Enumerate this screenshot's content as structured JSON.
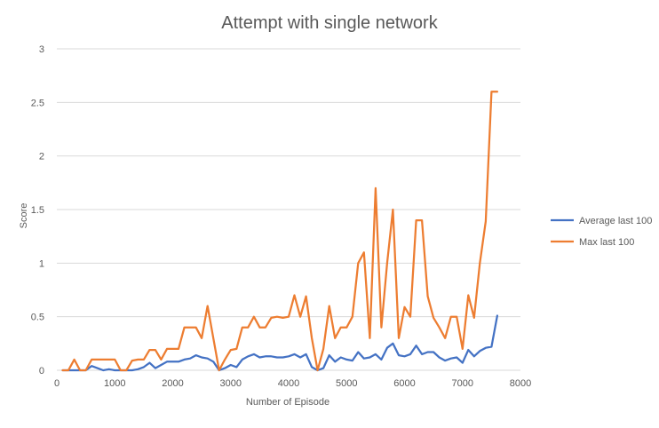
{
  "chart_data": {
    "type": "line",
    "title": "Attempt with single network",
    "xlabel": "Number  of Episode",
    "ylabel": "Score",
    "xlim": [
      0,
      8000
    ],
    "ylim": [
      0,
      3
    ],
    "x_ticks": [
      0,
      1000,
      2000,
      3000,
      4000,
      5000,
      6000,
      7000,
      8000
    ],
    "y_ticks": [
      0,
      0.5,
      1,
      1.5,
      2,
      2.5,
      3
    ],
    "x_tick_labels": [
      "0",
      "1000",
      "2000",
      "3000",
      "4000",
      "5000",
      "6000",
      "7000",
      "8000"
    ],
    "y_tick_labels": [
      "0",
      "0.5",
      "1",
      "1.5",
      "2",
      "2.5",
      "3"
    ],
    "grid": "horizontal",
    "legend_position": "right",
    "series": [
      {
        "name": "Average last 100",
        "color": "#4472c4",
        "points": [
          [
            100,
            0
          ],
          [
            200,
            0
          ],
          [
            300,
            0
          ],
          [
            400,
            0
          ],
          [
            500,
            0
          ],
          [
            600,
            0.04
          ],
          [
            700,
            0.02
          ],
          [
            800,
            0
          ],
          [
            900,
            0.01
          ],
          [
            1000,
            0
          ],
          [
            1100,
            0
          ],
          [
            1200,
            0
          ],
          [
            1300,
            0
          ],
          [
            1400,
            0.01
          ],
          [
            1500,
            0.03
          ],
          [
            1600,
            0.07
          ],
          [
            1700,
            0.02
          ],
          [
            1800,
            0.05
          ],
          [
            1900,
            0.08
          ],
          [
            2000,
            0.08
          ],
          [
            2100,
            0.08
          ],
          [
            2200,
            0.1
          ],
          [
            2300,
            0.11
          ],
          [
            2400,
            0.14
          ],
          [
            2500,
            0.12
          ],
          [
            2600,
            0.11
          ],
          [
            2700,
            0.08
          ],
          [
            2800,
            0
          ],
          [
            2900,
            0.02
          ],
          [
            3000,
            0.05
          ],
          [
            3100,
            0.03
          ],
          [
            3200,
            0.1
          ],
          [
            3300,
            0.13
          ],
          [
            3400,
            0.15
          ],
          [
            3500,
            0.12
          ],
          [
            3600,
            0.13
          ],
          [
            3700,
            0.13
          ],
          [
            3800,
            0.12
          ],
          [
            3900,
            0.12
          ],
          [
            4000,
            0.13
          ],
          [
            4100,
            0.15
          ],
          [
            4200,
            0.12
          ],
          [
            4300,
            0.15
          ],
          [
            4400,
            0.03
          ],
          [
            4500,
            0
          ],
          [
            4600,
            0.02
          ],
          [
            4700,
            0.14
          ],
          [
            4800,
            0.08
          ],
          [
            4900,
            0.12
          ],
          [
            5000,
            0.1
          ],
          [
            5100,
            0.09
          ],
          [
            5200,
            0.17
          ],
          [
            5300,
            0.11
          ],
          [
            5400,
            0.12
          ],
          [
            5500,
            0.15
          ],
          [
            5600,
            0.1
          ],
          [
            5700,
            0.21
          ],
          [
            5800,
            0.25
          ],
          [
            5900,
            0.14
          ],
          [
            6000,
            0.13
          ],
          [
            6100,
            0.15
          ],
          [
            6200,
            0.23
          ],
          [
            6300,
            0.15
          ],
          [
            6400,
            0.17
          ],
          [
            6500,
            0.17
          ],
          [
            6600,
            0.12
          ],
          [
            6700,
            0.09
          ],
          [
            6800,
            0.11
          ],
          [
            6900,
            0.12
          ],
          [
            7000,
            0.07
          ],
          [
            7100,
            0.19
          ],
          [
            7200,
            0.13
          ],
          [
            7300,
            0.18
          ],
          [
            7400,
            0.21
          ],
          [
            7500,
            0.22
          ],
          [
            7600,
            0.51
          ]
        ]
      },
      {
        "name": "Max last 100",
        "color": "#ed7d31",
        "points": [
          [
            100,
            0
          ],
          [
            200,
            0
          ],
          [
            300,
            0.1
          ],
          [
            400,
            0
          ],
          [
            500,
            0
          ],
          [
            600,
            0.1
          ],
          [
            700,
            0.1
          ],
          [
            800,
            0.1
          ],
          [
            900,
            0.1
          ],
          [
            1000,
            0.1
          ],
          [
            1100,
            0
          ],
          [
            1200,
            0
          ],
          [
            1300,
            0.09
          ],
          [
            1400,
            0.1
          ],
          [
            1500,
            0.1
          ],
          [
            1600,
            0.19
          ],
          [
            1700,
            0.19
          ],
          [
            1800,
            0.1
          ],
          [
            1900,
            0.2
          ],
          [
            2000,
            0.2
          ],
          [
            2100,
            0.2
          ],
          [
            2200,
            0.4
          ],
          [
            2300,
            0.4
          ],
          [
            2400,
            0.4
          ],
          [
            2500,
            0.3
          ],
          [
            2600,
            0.6
          ],
          [
            2700,
            0.3
          ],
          [
            2800,
            0
          ],
          [
            2900,
            0.1
          ],
          [
            3000,
            0.19
          ],
          [
            3100,
            0.2
          ],
          [
            3200,
            0.4
          ],
          [
            3300,
            0.4
          ],
          [
            3400,
            0.5
          ],
          [
            3500,
            0.4
          ],
          [
            3600,
            0.4
          ],
          [
            3700,
            0.49
          ],
          [
            3800,
            0.5
          ],
          [
            3900,
            0.49
          ],
          [
            4000,
            0.5
          ],
          [
            4100,
            0.7
          ],
          [
            4200,
            0.5
          ],
          [
            4300,
            0.69
          ],
          [
            4400,
            0.3
          ],
          [
            4500,
            0
          ],
          [
            4600,
            0.2
          ],
          [
            4700,
            0.6
          ],
          [
            4800,
            0.3
          ],
          [
            4900,
            0.4
          ],
          [
            5000,
            0.4
          ],
          [
            5100,
            0.5
          ],
          [
            5200,
            1
          ],
          [
            5300,
            1.1
          ],
          [
            5400,
            0.3
          ],
          [
            5500,
            1.7
          ],
          [
            5600,
            0.4
          ],
          [
            5700,
            1
          ],
          [
            5800,
            1.5
          ],
          [
            5900,
            0.3
          ],
          [
            6000,
            0.59
          ],
          [
            6100,
            0.5
          ],
          [
            6200,
            1.4
          ],
          [
            6300,
            1.4
          ],
          [
            6400,
            0.69
          ],
          [
            6500,
            0.49
          ],
          [
            6600,
            0.4
          ],
          [
            6700,
            0.3
          ],
          [
            6800,
            0.5
          ],
          [
            6900,
            0.5
          ],
          [
            7000,
            0.2
          ],
          [
            7100,
            0.7
          ],
          [
            7200,
            0.49
          ],
          [
            7300,
            1
          ],
          [
            7400,
            1.39
          ],
          [
            7500,
            2.6
          ],
          [
            7600,
            2.6
          ]
        ]
      }
    ]
  }
}
